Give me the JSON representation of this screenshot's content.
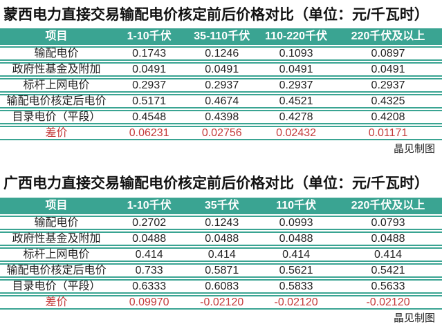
{
  "colors": {
    "header_teal": "#3AA492",
    "row_border_teal": "#3AA492",
    "diff_red": "#C43B3B",
    "header_text": "#FFFFFF",
    "body_text": "#222222",
    "background": "#FFFFFF"
  },
  "chart_data": [
    {
      "type": "table",
      "title": "蒙西电力直接交易输配电价核定前后价格对比（单位：元/千瓦时）",
      "columns": [
        "项目",
        "1-10千伏",
        "35-110千伏",
        "110-220千伏",
        "220千伏及以上"
      ],
      "rows": [
        {
          "label": "输配电价",
          "values": [
            "0.1743",
            "0.1246",
            "0.1093",
            "0.0897"
          ],
          "highlight": false
        },
        {
          "label": "政府性基金及附加",
          "values": [
            "0.0491",
            "0.0491",
            "0.0491",
            "0.0491"
          ],
          "highlight": false
        },
        {
          "label": "标杆上网电价",
          "values": [
            "0.2937",
            "0.2937",
            "0.2937",
            "0.2937"
          ],
          "highlight": false
        },
        {
          "label": "输配电价核定后电价",
          "values": [
            "0.5171",
            "0.4674",
            "0.4521",
            "0.4325"
          ],
          "highlight": false
        },
        {
          "label": "目录电价（平段）",
          "values": [
            "0.4548",
            "0.4398",
            "0.4278",
            "0.4208"
          ],
          "highlight": false
        },
        {
          "label": "差价",
          "values": [
            "0.06231",
            "0.02756",
            "0.02432",
            "0.01171"
          ],
          "highlight": true
        }
      ],
      "credit": "晶见制图"
    },
    {
      "type": "table",
      "title": "广西电力直接交易输配电价核定前后价格对比（单位：元/千瓦时）",
      "columns": [
        "项目",
        "1-10千伏",
        "35千伏",
        "110千伏",
        "220千伏及以上"
      ],
      "rows": [
        {
          "label": "输配电价",
          "values": [
            "0.2702",
            "0.1243",
            "0.0993",
            "0.0793"
          ],
          "highlight": false
        },
        {
          "label": "政府性基金及附加",
          "values": [
            "0.0488",
            "0.0488",
            "0.0488",
            "0.0488"
          ],
          "highlight": false
        },
        {
          "label": "标杆上网电价",
          "values": [
            "0.414",
            "0.414",
            "0.414",
            "0.414"
          ],
          "highlight": false
        },
        {
          "label": "输配电价核定后电价",
          "values": [
            "0.733",
            "0.5871",
            "0.5621",
            "0.5421"
          ],
          "highlight": false
        },
        {
          "label": "目录电价（平段）",
          "values": [
            "0.6333",
            "0.6083",
            "0.5833",
            "0.5633"
          ],
          "highlight": false
        },
        {
          "label": "差价",
          "values": [
            "0.09970",
            "-0.02120",
            "-0.02120",
            "-0.02120"
          ],
          "highlight": true
        }
      ],
      "credit": "晶见制图"
    }
  ]
}
